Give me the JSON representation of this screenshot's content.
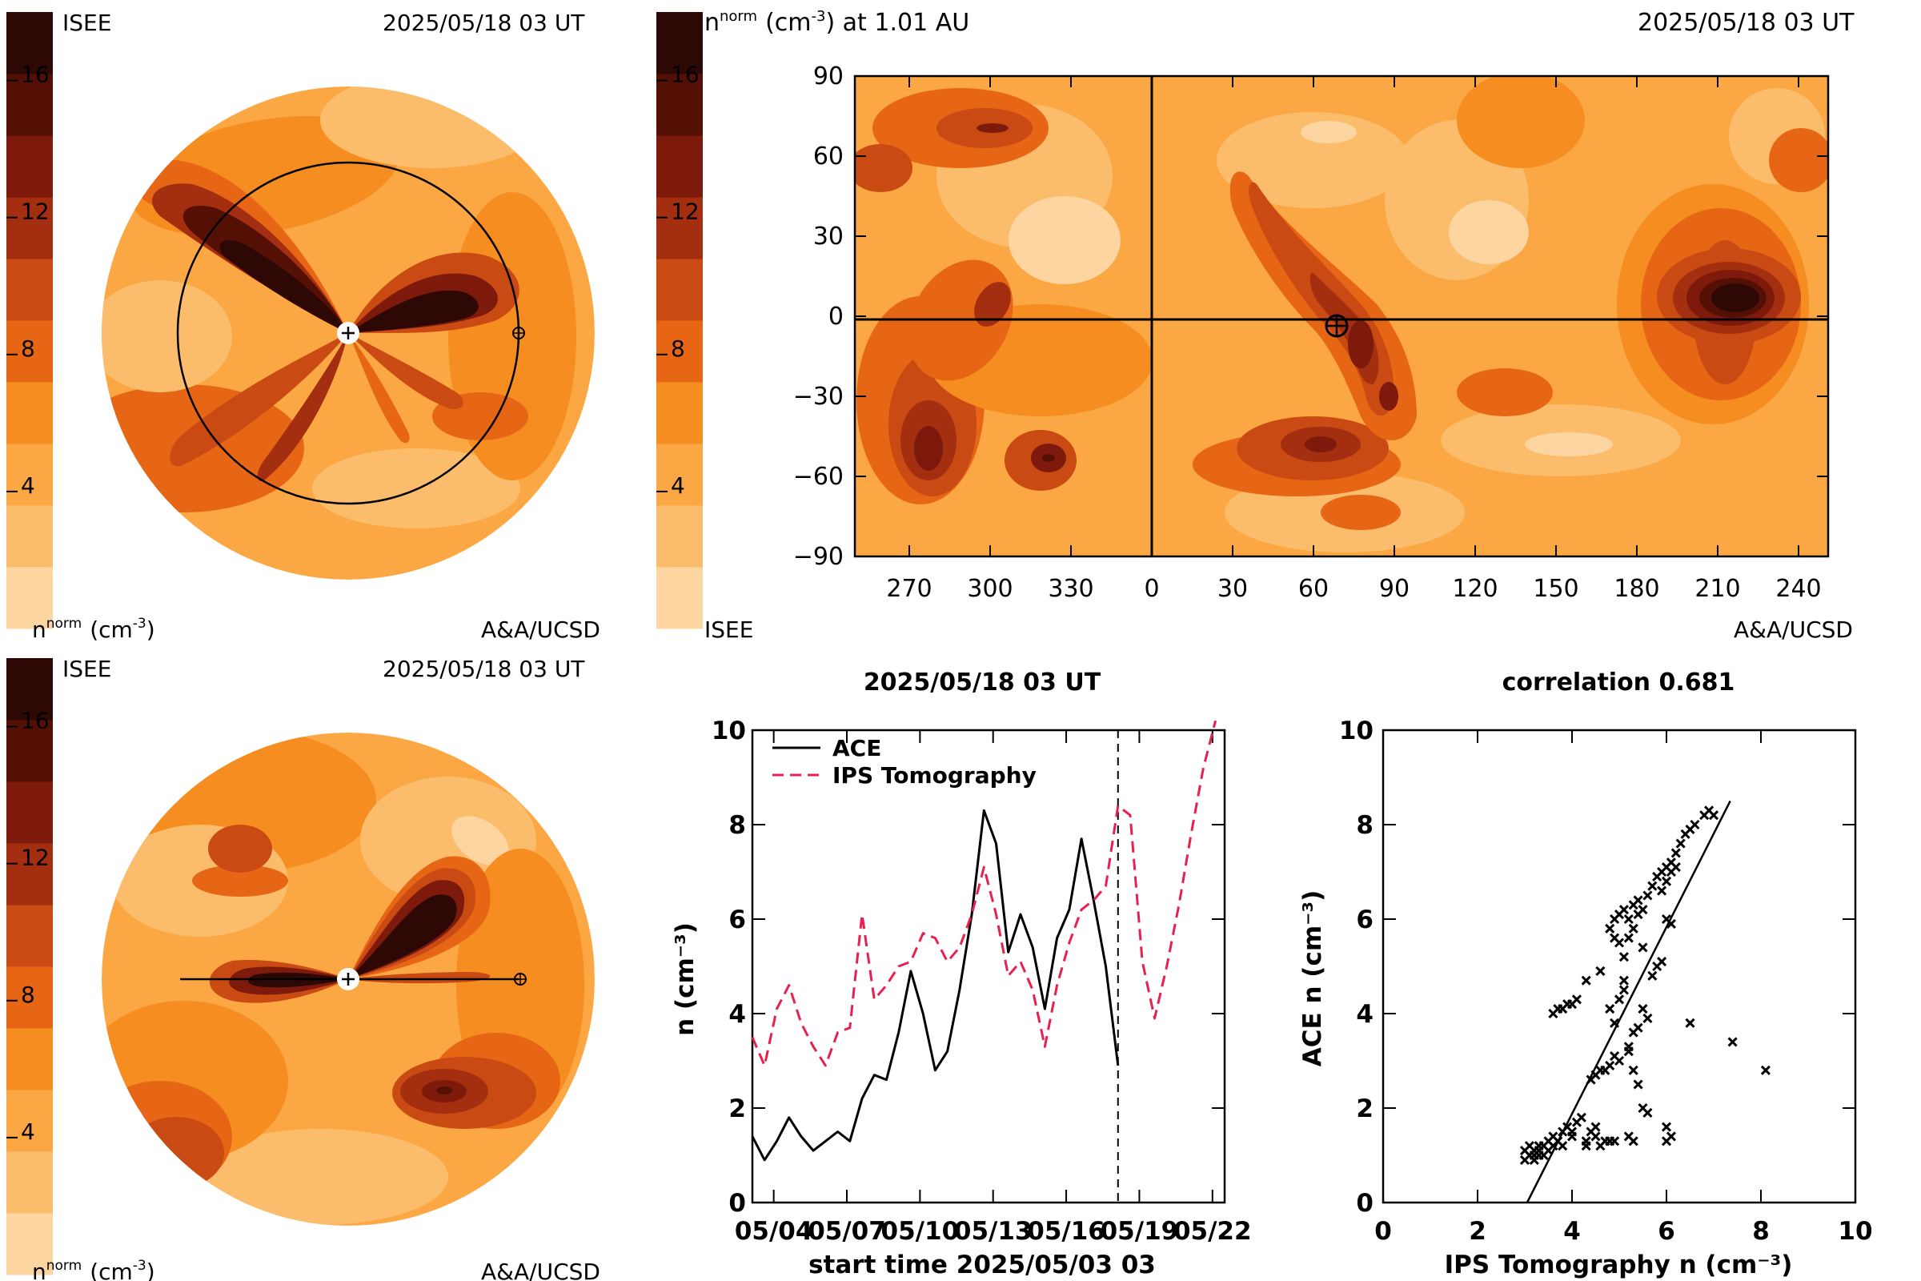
{
  "palette": {
    "levels": [
      "#fdd5a0",
      "#fbbd6b",
      "#fba743",
      "#f58d20",
      "#e66616",
      "#c94a12",
      "#a32e10",
      "#7e1a0c",
      "#551006",
      "#2d0804"
    ],
    "light": "#fdd5a0",
    "mid": "#fba743",
    "dark": "#2d0804",
    "series_ace": "#000000",
    "series_ips": "#e8204f"
  },
  "polar_top": {
    "title_left": "ISEE",
    "title_right": "2025/05/18 03 UT",
    "bottom_left": "n",
    "bottom_left_sup": "norm",
    "bottom_left_unit": "(cm",
    "bottom_left_unit_sup": "-3",
    "bottom_left_unit_end": ")",
    "bottom_right": "A&A/UCSD",
    "colorbar_ticks": [
      "4",
      "8",
      "12",
      "16"
    ]
  },
  "polar_bottom": {
    "title_left": "ISEE",
    "title_right": "2025/05/18 03 UT",
    "bottom_left": "n",
    "bottom_left_sup": "norm",
    "bottom_left_unit": "(cm",
    "bottom_left_unit_sup": "-3",
    "bottom_left_unit_end": ")",
    "bottom_right": "A&A/UCSD",
    "colorbar_ticks": [
      "4",
      "8",
      "12",
      "16"
    ]
  },
  "map": {
    "title_n": "n",
    "title_sup": "norm",
    "title_unit": "(cm",
    "title_unit_sup": "-3",
    "title_tail": ") at 1.01 AU",
    "title_right": "2025/05/18 03 UT",
    "bottom_left": "ISEE",
    "bottom_right": "A&A/UCSD",
    "colorbar_ticks": [
      "4",
      "8",
      "12",
      "16"
    ],
    "y_ticks": [
      "90",
      "60",
      "30",
      "0",
      "−30",
      "−60",
      "−90"
    ],
    "x_ticks": [
      "270",
      "300",
      "330",
      "0",
      "30",
      "60",
      "90",
      "120",
      "150",
      "180",
      "210",
      "240"
    ]
  },
  "chart_data": [
    {
      "type": "line",
      "title": "2025/05/18 03 UT",
      "xlabel": "start time 2025/05/03 03",
      "ylabel": "n (cm⁻³)",
      "ylim": [
        0,
        10
      ],
      "xlim_days": "05/03 to 05/22",
      "x_tick_labels": [
        "05/04",
        "05/07",
        "05/10",
        "05/13",
        "05/16",
        "05/19",
        "05/22"
      ],
      "y_tick_labels": [
        "0",
        "2",
        "4",
        "6",
        "8",
        "10"
      ],
      "marker_line_date": "05/18 03",
      "series": [
        {
          "name": "ACE",
          "style": "solid",
          "x": [
            "05/03 03",
            "05/03 15",
            "05/04 03",
            "05/04 15",
            "05/05 03",
            "05/05 15",
            "05/06 03",
            "05/06 15",
            "05/07 03",
            "05/07 15",
            "05/08 03",
            "05/08 15",
            "05/09 03",
            "05/09 15",
            "05/10 03",
            "05/10 15",
            "05/11 03",
            "05/11 15",
            "05/12 03",
            "05/12 15",
            "05/13 03",
            "05/13 15",
            "05/14 03",
            "05/14 15",
            "05/15 03",
            "05/15 15",
            "05/16 03",
            "05/16 15",
            "05/17 03",
            "05/17 15",
            "05/18 03"
          ],
          "y": [
            1.4,
            0.9,
            1.3,
            1.8,
            1.4,
            1.1,
            1.3,
            1.5,
            1.3,
            2.2,
            2.7,
            2.6,
            3.6,
            4.9,
            4.0,
            2.8,
            3.2,
            4.5,
            6.1,
            8.3,
            7.6,
            5.3,
            6.1,
            5.4,
            4.1,
            5.6,
            6.2,
            7.7,
            6.4,
            5.0,
            2.9
          ]
        },
        {
          "name": "IPS Tomography",
          "style": "dashed",
          "x": [
            "05/03 03",
            "05/03 15",
            "05/04 03",
            "05/04 15",
            "05/05 03",
            "05/05 15",
            "05/06 03",
            "05/06 15",
            "05/07 03",
            "05/07 15",
            "05/08 03",
            "05/08 15",
            "05/09 03",
            "05/09 15",
            "05/10 03",
            "05/10 15",
            "05/11 03",
            "05/11 15",
            "05/12 03",
            "05/12 15",
            "05/13 03",
            "05/13 15",
            "05/14 03",
            "05/14 15",
            "05/15 03",
            "05/15 15",
            "05/16 03",
            "05/16 15",
            "05/17 03",
            "05/17 15",
            "05/18 03",
            "05/18 15",
            "05/19 03",
            "05/19 15",
            "05/20 03",
            "05/20 15",
            "05/21 03",
            "05/21 15",
            "05/22 03"
          ],
          "y": [
            3.5,
            2.9,
            4.1,
            4.6,
            3.8,
            3.3,
            2.9,
            3.6,
            3.7,
            6.1,
            4.3,
            4.6,
            5.0,
            5.1,
            5.7,
            5.6,
            5.1,
            5.4,
            6.1,
            7.1,
            6.1,
            4.8,
            5.1,
            4.5,
            3.3,
            4.6,
            5.5,
            6.2,
            6.4,
            6.7,
            8.4,
            8.2,
            5.1,
            3.9,
            5.0,
            6.3,
            7.8,
            9.2,
            10.2
          ]
        }
      ],
      "legend": "top-left"
    },
    {
      "type": "scatter",
      "title": "correlation 0.681",
      "xlabel": "IPS Tomography n (cm⁻³)",
      "ylabel": "ACE n (cm⁻³)",
      "xlim": [
        0,
        10
      ],
      "ylim": [
        0,
        10
      ],
      "x_tick_labels": [
        "0",
        "2",
        "4",
        "6",
        "8",
        "10"
      ],
      "y_tick_labels": [
        "0",
        "2",
        "4",
        "6",
        "8",
        "10"
      ],
      "fit_line": {
        "x": [
          3.05,
          7.35
        ],
        "y": [
          0.0,
          8.5
        ]
      },
      "points": [
        [
          3.0,
          0.9
        ],
        [
          3.0,
          1.1
        ],
        [
          3.1,
          1.0
        ],
        [
          3.1,
          1.2
        ],
        [
          3.2,
          0.9
        ],
        [
          3.2,
          1.0
        ],
        [
          3.2,
          1.1
        ],
        [
          3.3,
          1.1
        ],
        [
          3.3,
          1.2
        ],
        [
          3.3,
          1.0
        ],
        [
          3.4,
          1.2
        ],
        [
          3.4,
          1.0
        ],
        [
          3.5,
          1.1
        ],
        [
          3.5,
          1.3
        ],
        [
          3.6,
          1.4
        ],
        [
          3.6,
          1.2
        ],
        [
          3.7,
          1.3
        ],
        [
          3.8,
          1.5
        ],
        [
          3.8,
          1.2
        ],
        [
          3.9,
          1.6
        ],
        [
          4.0,
          1.5
        ],
        [
          4.0,
          1.4
        ],
        [
          4.1,
          1.7
        ],
        [
          4.2,
          1.8
        ],
        [
          4.3,
          1.3
        ],
        [
          4.3,
          1.2
        ],
        [
          4.4,
          1.5
        ],
        [
          4.5,
          1.4
        ],
        [
          4.5,
          1.6
        ],
        [
          4.6,
          1.2
        ],
        [
          4.7,
          1.3
        ],
        [
          4.8,
          1.3
        ],
        [
          4.9,
          1.3
        ],
        [
          3.6,
          4.0
        ],
        [
          3.7,
          4.1
        ],
        [
          3.8,
          4.1
        ],
        [
          3.9,
          4.2
        ],
        [
          4.0,
          4.2
        ],
        [
          4.1,
          4.3
        ],
        [
          4.3,
          4.7
        ],
        [
          4.4,
          2.6
        ],
        [
          4.5,
          2.7
        ],
        [
          4.6,
          2.8
        ],
        [
          4.7,
          2.8
        ],
        [
          4.8,
          2.9
        ],
        [
          4.9,
          3.1
        ],
        [
          5.0,
          3.0
        ],
        [
          4.9,
          3.8
        ],
        [
          4.8,
          4.1
        ],
        [
          5.0,
          4.3
        ],
        [
          5.1,
          4.5
        ],
        [
          5.2,
          3.2
        ],
        [
          5.3,
          2.8
        ],
        [
          5.4,
          2.5
        ],
        [
          5.5,
          2.0
        ],
        [
          5.6,
          1.9
        ],
        [
          5.2,
          3.3
        ],
        [
          5.3,
          3.6
        ],
        [
          5.4,
          3.7
        ],
        [
          5.5,
          4.1
        ],
        [
          5.6,
          3.9
        ],
        [
          5.1,
          5.2
        ],
        [
          5.2,
          5.6
        ],
        [
          5.3,
          5.8
        ],
        [
          5.0,
          5.5
        ],
        [
          4.9,
          5.6
        ],
        [
          4.8,
          5.8
        ],
        [
          4.9,
          6.0
        ],
        [
          5.0,
          6.1
        ],
        [
          5.1,
          6.2
        ],
        [
          5.2,
          6.0
        ],
        [
          5.3,
          6.3
        ],
        [
          5.4,
          6.4
        ],
        [
          5.5,
          6.2
        ],
        [
          5.6,
          6.5
        ],
        [
          5.7,
          6.7
        ],
        [
          5.8,
          6.9
        ],
        [
          5.9,
          7.0
        ],
        [
          6.0,
          7.1
        ],
        [
          6.1,
          7.2
        ],
        [
          6.2,
          7.4
        ],
        [
          6.3,
          7.6
        ],
        [
          6.4,
          7.8
        ],
        [
          6.5,
          7.9
        ],
        [
          6.6,
          8.0
        ],
        [
          6.8,
          8.2
        ],
        [
          6.9,
          8.3
        ],
        [
          7.0,
          8.2
        ],
        [
          5.9,
          6.6
        ],
        [
          6.0,
          6.8
        ],
        [
          6.1,
          7.0
        ],
        [
          6.2,
          7.1
        ],
        [
          6.0,
          6.0
        ],
        [
          6.1,
          5.9
        ],
        [
          5.7,
          4.8
        ],
        [
          5.8,
          5.0
        ],
        [
          5.9,
          5.1
        ],
        [
          6.0,
          1.6
        ],
        [
          6.0,
          1.3
        ],
        [
          6.1,
          1.4
        ],
        [
          6.5,
          3.8
        ],
        [
          7.4,
          3.4
        ],
        [
          8.1,
          2.8
        ],
        [
          5.4,
          6.1
        ],
        [
          5.5,
          5.4
        ],
        [
          4.6,
          4.9
        ],
        [
          5.1,
          4.7
        ],
        [
          5.2,
          1.4
        ],
        [
          5.3,
          1.3
        ]
      ]
    }
  ]
}
